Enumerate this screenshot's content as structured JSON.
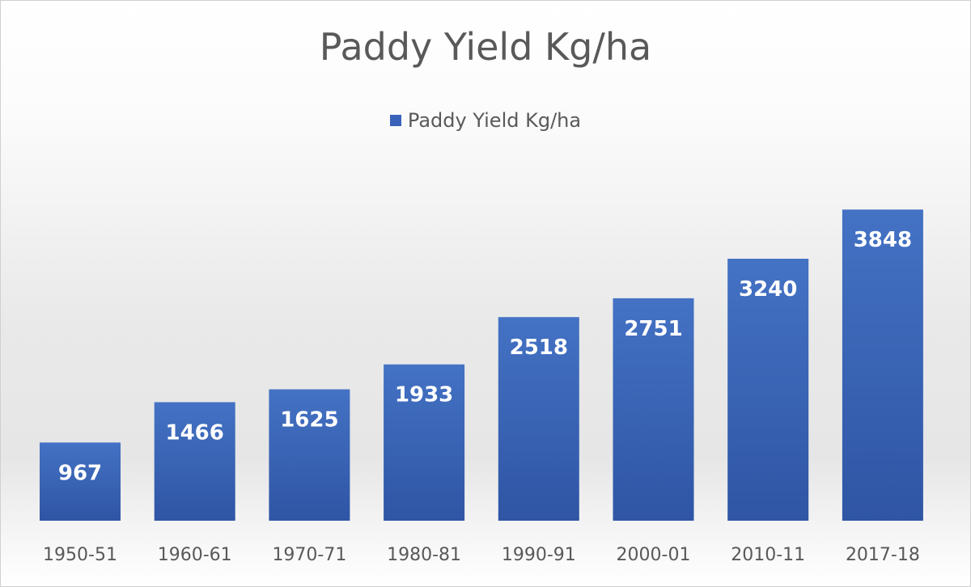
{
  "chart_data": {
    "type": "bar",
    "title": "Paddy Yield Kg/ha",
    "categories": [
      "1950-51",
      "1960-61",
      "1970-71",
      "1980-81",
      "1990-91",
      "2000-01",
      "2010-11",
      "2017-18"
    ],
    "series": [
      {
        "name": "Paddy Yield Kg/ha",
        "values": [
          967,
          1466,
          1625,
          1933,
          2518,
          2751,
          3240,
          3848
        ]
      }
    ],
    "ylim": [
      0,
      4000
    ],
    "grid": false,
    "legend": "top-center",
    "data_labels": true,
    "colors": {
      "bar_top": "#4472C4",
      "bar_bottom": "#2F55A4",
      "legend_swatch": "#3A62B8"
    }
  }
}
